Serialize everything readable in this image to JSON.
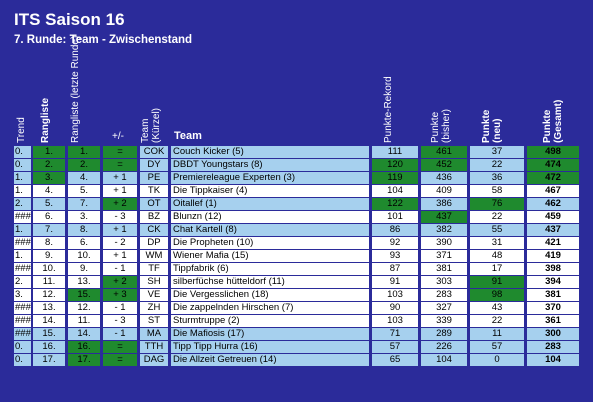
{
  "title": "ITS Saison 16",
  "subtitle": "7. Runde: Team - Zwischenstand",
  "headers": {
    "trend": "Trend",
    "rangliste": "Rangliste",
    "rangliste_prev": "Rangliste (letzte Runde)",
    "plusminus": "+/-",
    "team_short": "Team (Kürzel)",
    "team": "Team",
    "rekord": "Punkte-Rekord",
    "bisher": "Punkte (bisher)",
    "neu": "Punkte (neu)",
    "gesamt": "Punkte (Gesamt)"
  },
  "colors": {
    "panel": "#2b2b9a",
    "highlight": "#a6d0ee",
    "green": "#1f8a2e"
  },
  "rows": [
    {
      "trend": "0.",
      "rank": "1.",
      "prev": "1.",
      "delta": "=",
      "short": "COK",
      "team": "Couch Kicker (5)",
      "rekord": "111",
      "bisher": "461",
      "neu": "37",
      "gesamt": "498",
      "hl": true,
      "g": [
        "rank",
        "prev",
        "delta",
        "bisher",
        "gesamt"
      ]
    },
    {
      "trend": "0.",
      "rank": "2.",
      "prev": "2.",
      "delta": "=",
      "short": "DY",
      "team": "DBDT Youngstars (8)",
      "rekord": "120",
      "bisher": "452",
      "neu": "22",
      "gesamt": "474",
      "hl": true,
      "g": [
        "rank",
        "prev",
        "delta",
        "rekord",
        "bisher",
        "gesamt"
      ]
    },
    {
      "trend": "1.",
      "rank": "3.",
      "prev": "4.",
      "delta": "+ 1",
      "short": "PE",
      "team": "Premiereleague Experten (3)",
      "rekord": "119",
      "bisher": "436",
      "neu": "36",
      "gesamt": "472",
      "hl": true,
      "g": [
        "rank",
        "rekord",
        "gesamt"
      ]
    },
    {
      "trend": "1.",
      "rank": "4.",
      "prev": "5.",
      "delta": "+ 1",
      "short": "TK",
      "team": "Die Tippkaiser (4)",
      "rekord": "104",
      "bisher": "409",
      "neu": "58",
      "gesamt": "467",
      "hl": false,
      "g": []
    },
    {
      "trend": "2.",
      "rank": "5.",
      "prev": "7.",
      "delta": "+ 2",
      "short": "OT",
      "team": "Oitallef (1)",
      "rekord": "122",
      "bisher": "386",
      "neu": "76",
      "gesamt": "462",
      "hl": true,
      "g": [
        "delta",
        "rekord",
        "neu"
      ]
    },
    {
      "trend": "###",
      "rank": "6.",
      "prev": "3.",
      "delta": "- 3",
      "short": "BZ",
      "team": "Blunzn (12)",
      "rekord": "101",
      "bisher": "437",
      "neu": "22",
      "gesamt": "459",
      "hl": false,
      "g": [
        "bisher"
      ]
    },
    {
      "trend": "1.",
      "rank": "7.",
      "prev": "8.",
      "delta": "+ 1",
      "short": "CK",
      "team": "Chat Kartell (8)",
      "rekord": "86",
      "bisher": "382",
      "neu": "55",
      "gesamt": "437",
      "hl": true,
      "g": []
    },
    {
      "trend": "###",
      "rank": "8.",
      "prev": "6.",
      "delta": "- 2",
      "short": "DP",
      "team": "Die Propheten (10)",
      "rekord": "92",
      "bisher": "390",
      "neu": "31",
      "gesamt": "421",
      "hl": false,
      "g": []
    },
    {
      "trend": "1.",
      "rank": "9.",
      "prev": "10.",
      "delta": "+ 1",
      "short": "WM",
      "team": "Wiener Mafia (15)",
      "rekord": "93",
      "bisher": "371",
      "neu": "48",
      "gesamt": "419",
      "hl": false,
      "g": []
    },
    {
      "trend": "###",
      "rank": "10.",
      "prev": "9.",
      "delta": "- 1",
      "short": "TF",
      "team": "Tippfabrik (6)",
      "rekord": "87",
      "bisher": "381",
      "neu": "17",
      "gesamt": "398",
      "hl": false,
      "g": []
    },
    {
      "trend": "2.",
      "rank": "11.",
      "prev": "13.",
      "delta": "+ 2",
      "short": "SH",
      "team": "silberfüchse hütteldorf (11)",
      "rekord": "91",
      "bisher": "303",
      "neu": "91",
      "gesamt": "394",
      "hl": false,
      "g": [
        "delta",
        "neu"
      ]
    },
    {
      "trend": "3.",
      "rank": "12.",
      "prev": "15.",
      "delta": "+ 3",
      "short": "VE",
      "team": "Die Vergesslichen (18)",
      "rekord": "103",
      "bisher": "283",
      "neu": "98",
      "gesamt": "381",
      "hl": false,
      "g": [
        "prev",
        "delta",
        "neu"
      ]
    },
    {
      "trend": "###",
      "rank": "13.",
      "prev": "12.",
      "delta": "- 1",
      "short": "ZH",
      "team": "Die zappelnden Hirschen (7)",
      "rekord": "90",
      "bisher": "327",
      "neu": "43",
      "gesamt": "370",
      "hl": false,
      "g": []
    },
    {
      "trend": "###",
      "rank": "14.",
      "prev": "11.",
      "delta": "- 3",
      "short": "ST",
      "team": "Sturmtruppe (2)",
      "rekord": "103",
      "bisher": "339",
      "neu": "22",
      "gesamt": "361",
      "hl": false,
      "g": []
    },
    {
      "trend": "###",
      "rank": "15.",
      "prev": "14.",
      "delta": "- 1",
      "short": "MA",
      "team": "Die Mafiosis (17)",
      "rekord": "71",
      "bisher": "289",
      "neu": "11",
      "gesamt": "300",
      "hl": true,
      "g": []
    },
    {
      "trend": "0.",
      "rank": "16.",
      "prev": "16.",
      "delta": "=",
      "short": "TTH",
      "team": "Tipp Tipp Hurra (16)",
      "rekord": "57",
      "bisher": "226",
      "neu": "57",
      "gesamt": "283",
      "hl": true,
      "g": [
        "prev",
        "delta"
      ]
    },
    {
      "trend": "0.",
      "rank": "17.",
      "prev": "17.",
      "delta": "=",
      "short": "DAG",
      "team": "Die Allzeit Getreuen (14)",
      "rekord": "65",
      "bisher": "104",
      "neu": "0",
      "gesamt": "104",
      "hl": true,
      "g": [
        "prev",
        "delta"
      ]
    }
  ]
}
